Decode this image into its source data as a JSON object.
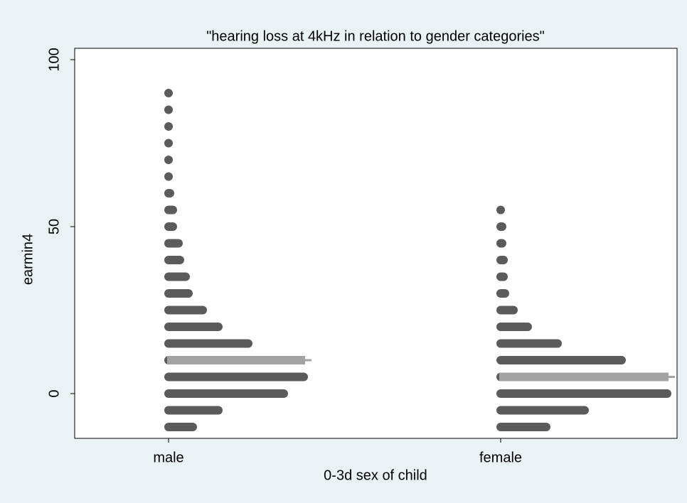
{
  "chart_data": {
    "type": "dotplot",
    "title": "\"hearing loss at 4kHz in relation to  gender categories\"",
    "x_label": "0-3d sex of child",
    "y_label": "earmin4",
    "categories": [
      "male",
      "female"
    ],
    "y": [
      -10,
      -5,
      0,
      5,
      10,
      15,
      20,
      25,
      30,
      35,
      40,
      45,
      50,
      55,
      60,
      65,
      70,
      75,
      80,
      85,
      90
    ],
    "counts": [
      [
        18,
        36,
        82,
        96,
        94,
        57,
        36,
        25,
        15,
        13,
        9,
        8,
        4,
        4,
        2,
        1,
        1,
        1,
        1,
        1,
        1
      ],
      [
        33,
        60,
        118,
        116,
        86,
        41,
        20,
        10,
        4,
        3,
        3,
        2,
        2,
        1,
        null,
        null,
        null,
        null,
        null,
        null,
        null
      ]
    ],
    "medians": [
      10,
      5
    ],
    "color": "#5b5b5b",
    "median_color": "#a3a3a3",
    "ylim": [
      -13.4,
      103.4
    ],
    "yticks": [
      0,
      50,
      100
    ]
  }
}
